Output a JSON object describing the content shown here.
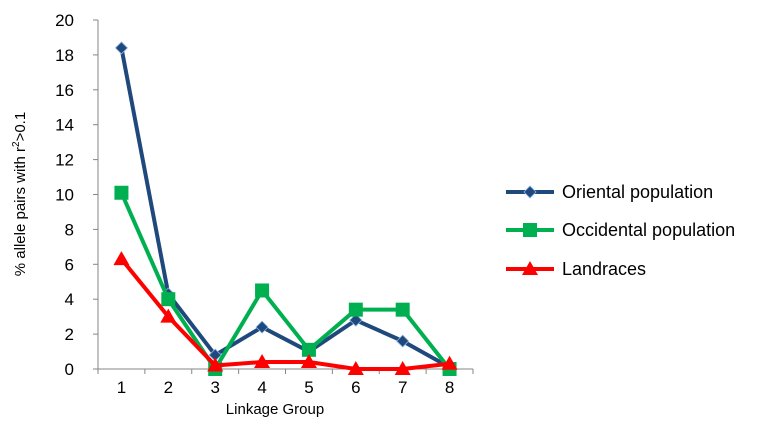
{
  "chart_data": {
    "type": "line",
    "title": "",
    "xlabel": "Linkage Group",
    "ylabel_main": "% allele pairs with r",
    "ylabel_sup": "2",
    "ylabel_tail": ">0.1",
    "categories": [
      "1",
      "2",
      "3",
      "4",
      "5",
      "6",
      "7",
      "8"
    ],
    "ylim": [
      0,
      20
    ],
    "yticks": [
      "0",
      "2",
      "4",
      "6",
      "8",
      "10",
      "12",
      "14",
      "16",
      "18",
      "20"
    ],
    "grid": false,
    "legend_position": "right",
    "series": [
      {
        "name": "Oriental population",
        "color": "#1f497d",
        "marker": "diamond",
        "values": [
          18.4,
          4.3,
          0.8,
          2.4,
          1.0,
          2.8,
          1.6,
          0.1
        ]
      },
      {
        "name": "Occidental population",
        "color": "#00b050",
        "marker": "square",
        "values": [
          10.1,
          4.0,
          0.0,
          4.5,
          1.1,
          3.4,
          3.4,
          0.0
        ]
      },
      {
        "name": "Landraces",
        "color": "#ff0000",
        "marker": "triangle",
        "values": [
          6.3,
          3.0,
          0.2,
          0.4,
          0.4,
          0.0,
          0.0,
          0.3
        ]
      }
    ]
  }
}
